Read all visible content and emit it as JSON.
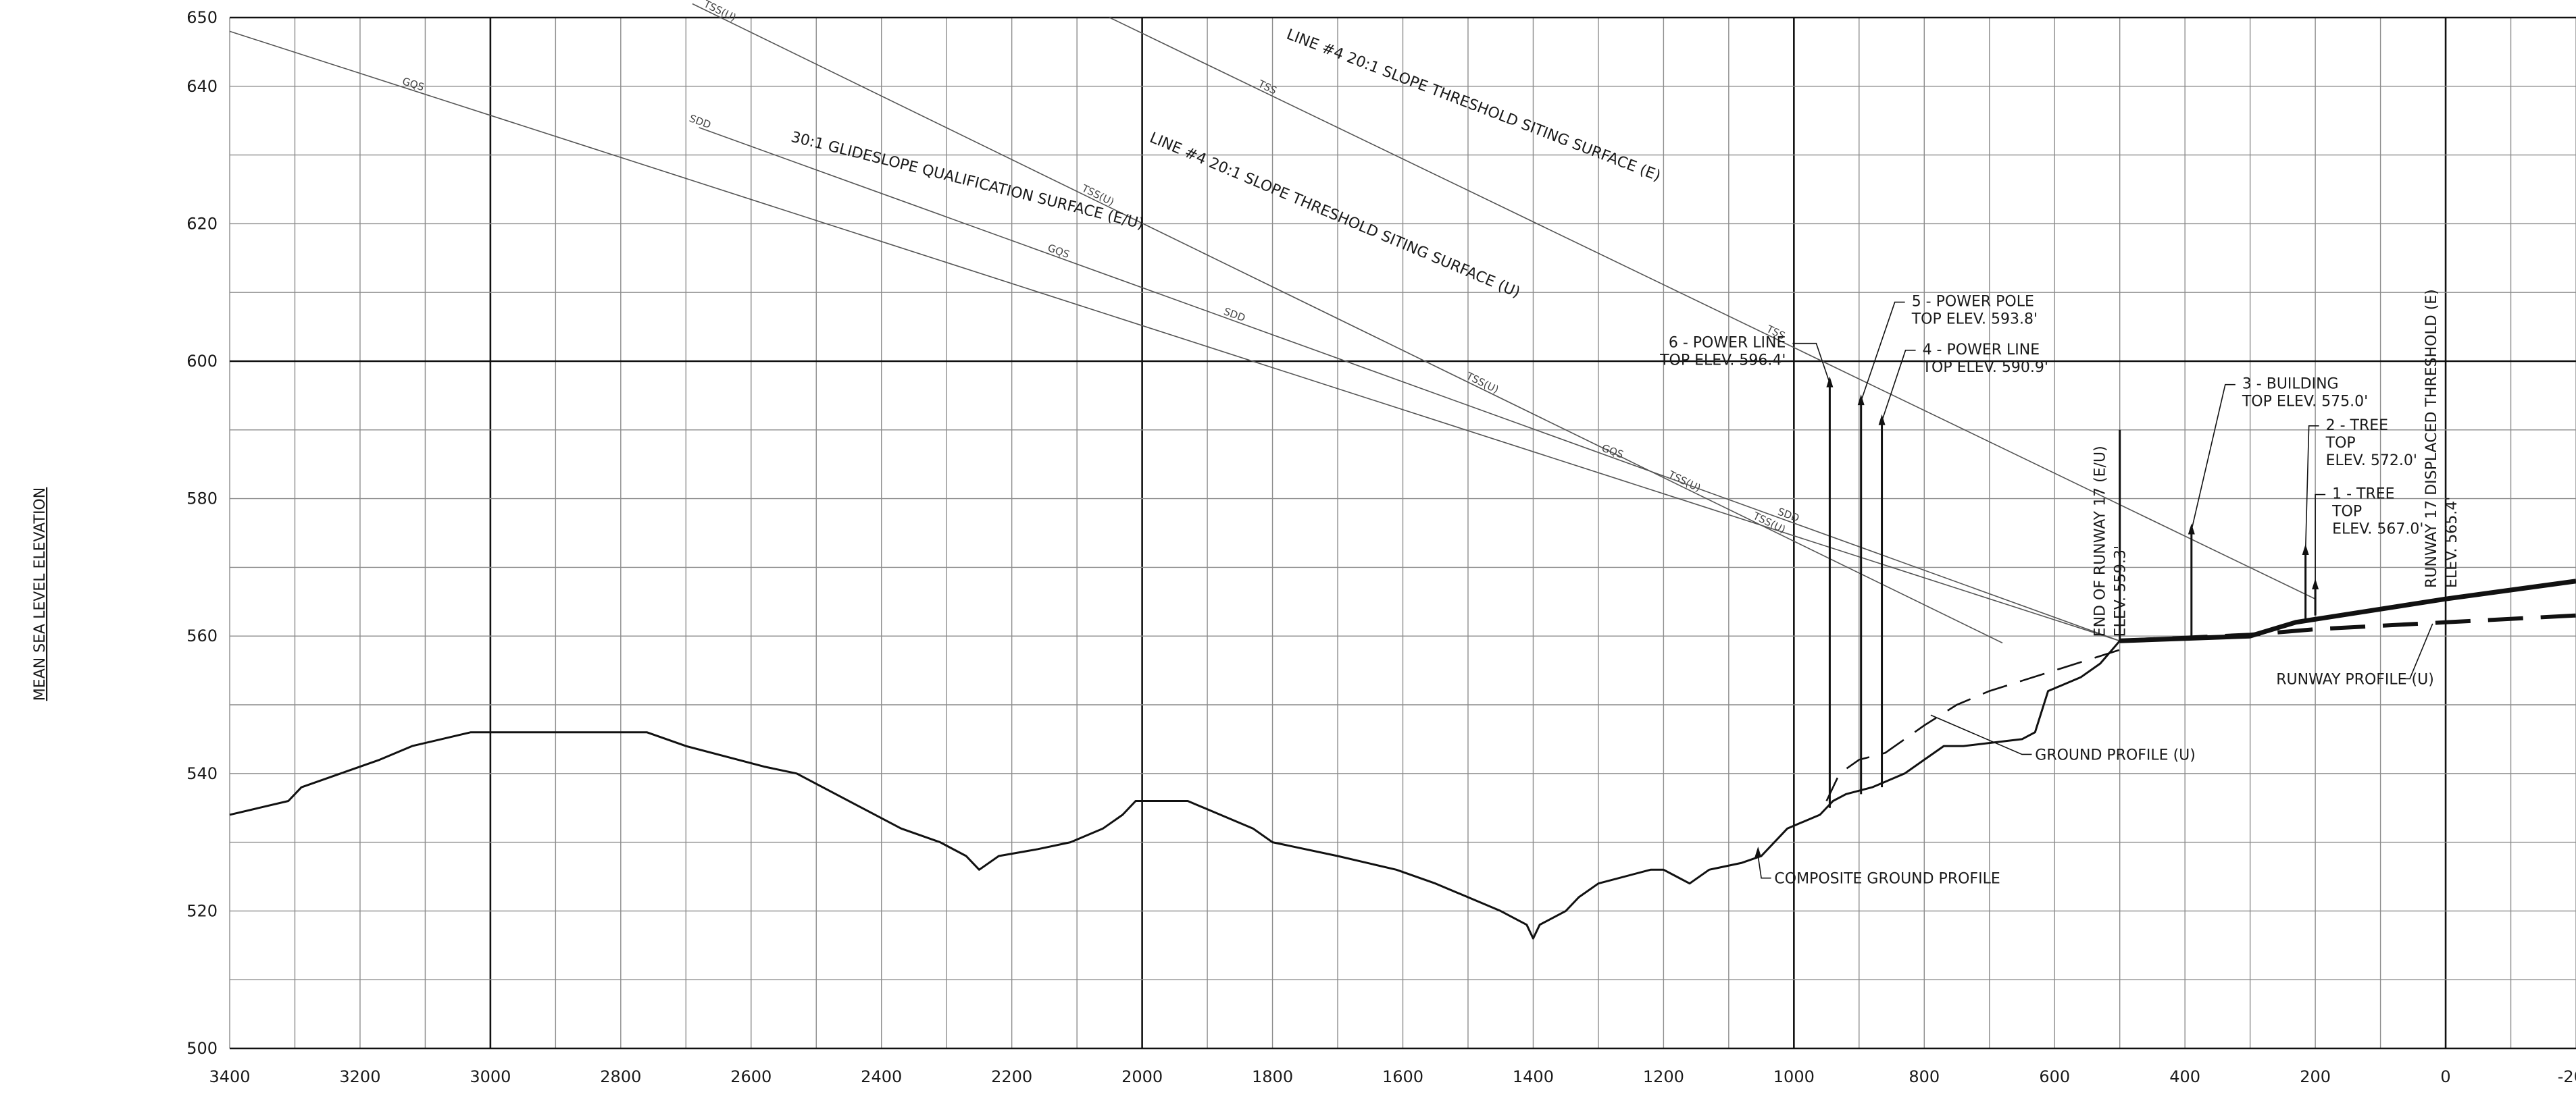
{
  "chart_data": {
    "type": "line",
    "title": "",
    "xlabel": "",
    "ylabel": "MEAN SEA LEVEL ELEVATION",
    "xlim": [
      3400,
      -200
    ],
    "ylim": [
      500,
      650
    ],
    "x_reversed": true,
    "grid": true,
    "x_ticks": [
      "3400",
      "3200",
      "3000",
      "2800",
      "2600",
      "2400",
      "2200",
      "2000",
      "1800",
      "1600",
      "1400",
      "1200",
      "1000",
      "800",
      "600",
      "400",
      "200",
      "0",
      "-200"
    ],
    "y_ticks": [
      "650",
      "640",
      "620",
      "600",
      "580",
      "560",
      "540",
      "520",
      "500"
    ],
    "series": [
      {
        "id": "composite-ground-profile",
        "style": "solid",
        "points": [
          [
            3400,
            534
          ],
          [
            3310,
            536
          ],
          [
            3290,
            538
          ],
          [
            3230,
            540
          ],
          [
            3170,
            542
          ],
          [
            3120,
            544
          ],
          [
            3030,
            546
          ],
          [
            2760,
            546
          ],
          [
            2700,
            544
          ],
          [
            2580,
            541
          ],
          [
            2530,
            540
          ],
          [
            2490,
            538
          ],
          [
            2430,
            535
          ],
          [
            2370,
            532
          ],
          [
            2310,
            530
          ],
          [
            2270,
            528
          ],
          [
            2250,
            526
          ],
          [
            2220,
            528
          ],
          [
            2160,
            529
          ],
          [
            2110,
            530
          ],
          [
            2060,
            532
          ],
          [
            2030,
            534
          ],
          [
            2010,
            536
          ],
          [
            1930,
            536
          ],
          [
            1880,
            534
          ],
          [
            1830,
            532
          ],
          [
            1800,
            530
          ],
          [
            1700,
            528
          ],
          [
            1610,
            526
          ],
          [
            1550,
            524
          ],
          [
            1450,
            520
          ],
          [
            1410,
            518
          ],
          [
            1400,
            516
          ],
          [
            1390,
            518
          ],
          [
            1350,
            520
          ],
          [
            1330,
            522
          ],
          [
            1300,
            524
          ],
          [
            1220,
            526
          ],
          [
            1200,
            526
          ],
          [
            1180,
            525
          ],
          [
            1160,
            524
          ],
          [
            1130,
            526
          ],
          [
            1080,
            527
          ],
          [
            1050,
            528
          ],
          [
            1010,
            532
          ],
          [
            960,
            534
          ],
          [
            940,
            536
          ],
          [
            920,
            537
          ],
          [
            880,
            538
          ],
          [
            830,
            540
          ],
          [
            800,
            542
          ],
          [
            770,
            544
          ],
          [
            740,
            544
          ],
          [
            650,
            545
          ],
          [
            630,
            546
          ],
          [
            610,
            552
          ],
          [
            560,
            554
          ],
          [
            530,
            556
          ],
          [
            500,
            559.3
          ]
        ]
      },
      {
        "id": "ground-profile-u",
        "style": "dashed",
        "points": [
          [
            950,
            536
          ],
          [
            930,
            540
          ],
          [
            900,
            542
          ],
          [
            860,
            543
          ],
          [
            800,
            547
          ],
          [
            750,
            550
          ],
          [
            700,
            552
          ],
          [
            600,
            555
          ],
          [
            500,
            558
          ],
          [
            490,
            559.3
          ]
        ]
      },
      {
        "id": "runway-profile-u",
        "style": "dashed-bold",
        "points": [
          [
            500,
            559.3
          ],
          [
            300,
            560.2
          ],
          [
            200,
            561
          ],
          [
            0,
            562
          ],
          [
            -200,
            563
          ]
        ]
      },
      {
        "id": "runway-profile-e",
        "style": "bold",
        "points": [
          [
            500,
            559.3
          ],
          [
            300,
            560
          ],
          [
            230,
            562
          ],
          [
            0,
            565.4
          ],
          [
            -200,
            568
          ]
        ]
      }
    ],
    "surfaces": [
      {
        "id": "gqs-upper",
        "points": [
          [
            3400,
            648
          ],
          [
            500,
            559.3
          ]
        ],
        "tags": [
          {
            "text": "GQS",
            "x": 3120
          }
        ]
      },
      {
        "id": "tss-e",
        "points": [
          [
            2050,
            650
          ],
          [
            200,
            565.4
          ]
        ],
        "tags": [
          {
            "text": "TSS",
            "x": 1810
          },
          {
            "text": "TSS",
            "x": 1030
          }
        ]
      },
      {
        "id": "tss-u",
        "points": [
          [
            2690,
            652
          ],
          [
            680,
            559
          ]
        ],
        "tags": [
          {
            "text": "TSS(U)",
            "x": 2650
          },
          {
            "text": "TSS(U)",
            "x": 2070
          },
          {
            "text": "TSS(U)",
            "x": 1480
          },
          {
            "text": "TSS(U)",
            "x": 1170
          },
          {
            "text": "TSS(U)",
            "x": 1040
          }
        ]
      },
      {
        "id": "gqs-lower",
        "points": [
          [
            2680,
            634
          ],
          [
            500,
            559.3
          ]
        ],
        "tags": [
          {
            "text": "SDD",
            "x": 2680
          },
          {
            "text": "GQS",
            "x": 2130
          },
          {
            "text": "SDD",
            "x": 1860
          },
          {
            "text": "GQS",
            "x": 1280
          },
          {
            "text": "SDD",
            "x": 1010
          }
        ]
      }
    ],
    "annotations": [
      {
        "id": "line4-tss-e",
        "text": "LINE #4 20:1 SLOPE THRESHOLD SITING SURFACE (E)",
        "x": 1780,
        "y": 647
      },
      {
        "id": "line4-tss-u",
        "text": "LINE #4 20:1 SLOPE THRESHOLD SITING SURFACE (U)",
        "x": 1990,
        "y": 632
      },
      {
        "id": "glideslope",
        "text": "30:1 GLIDESLOPE QUALIFICATION SURFACE (E/U)",
        "x": 2540,
        "y": 632
      },
      {
        "id": "composite-label",
        "text": "COMPOSITE GROUND PROFILE",
        "x": 1030,
        "y": 524
      },
      {
        "id": "ground-u-label",
        "text": "GROUND PROFILE (U)",
        "x": 630,
        "y": 542
      },
      {
        "id": "runway-u-label",
        "text": "RUNWAY PROFILE (U)",
        "x": 260,
        "y": 553
      }
    ],
    "obstacles": [
      {
        "id": 6,
        "x": 945,
        "top": 596.4,
        "base": 535,
        "line1": "6 - POWER LINE",
        "line2": "TOP ELEV. 596.4'"
      },
      {
        "id": 5,
        "x": 897,
        "top": 593.8,
        "base": 537,
        "line1": "5 - POWER POLE",
        "line2": "TOP ELEV. 593.8'"
      },
      {
        "id": 4,
        "x": 865,
        "top": 590.9,
        "base": 538,
        "line1": "4 - POWER LINE",
        "line2": "TOP ELEV. 590.9'"
      },
      {
        "id": 3,
        "x": 390,
        "top": 575.0,
        "base": 560,
        "line1": "3 - BUILDING",
        "line2": "TOP ELEV. 575.0'"
      },
      {
        "id": 2,
        "x": 215,
        "top": 572.0,
        "base": 562,
        "line1": "2 - TREE",
        "line2": "TOP",
        "line3": "ELEV. 572.0'"
      },
      {
        "id": 1,
        "x": 200,
        "top": 567.0,
        "base": 563,
        "line1": "1 - TREE",
        "line2": "TOP",
        "line3": "ELEV. 567.0'"
      }
    ],
    "markers": [
      {
        "id": "end-of-runway",
        "x": 500,
        "top": 590,
        "base": 559.3,
        "line1": "END OF RUNWAY 17 (E/U)",
        "line2": "ELEV. 559.3'"
      },
      {
        "id": "displaced-threshold",
        "x": 0,
        "top": 650,
        "base": 500,
        "line1": "RUNWAY 17 DISPLACED THRESHOLD (E)",
        "line2": "ELEV. 565.4'"
      }
    ]
  }
}
